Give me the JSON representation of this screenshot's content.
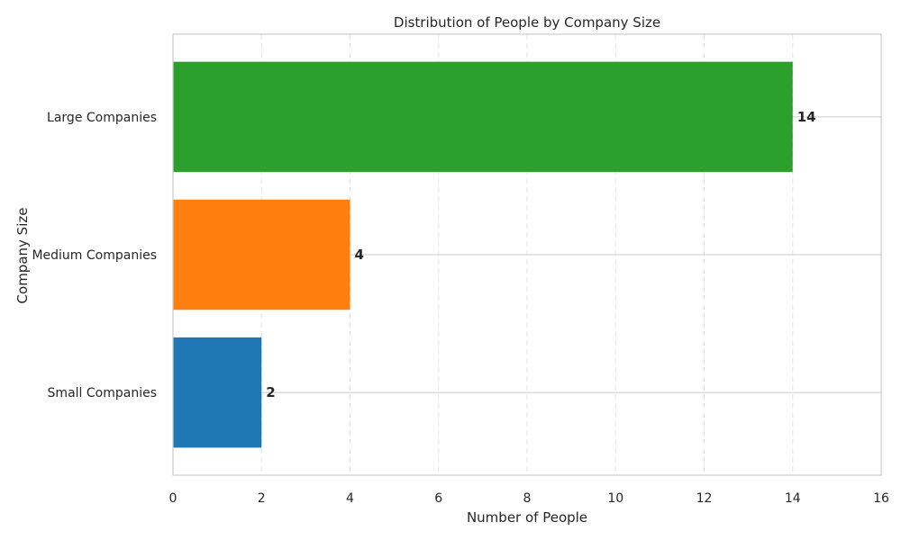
{
  "chart_data": {
    "type": "bar",
    "orientation": "horizontal",
    "title": "Distribution of People by Company Size",
    "xlabel": "Number of People",
    "ylabel": "Company Size",
    "categories": [
      "Small Companies",
      "Medium Companies",
      "Large Companies"
    ],
    "values": [
      2,
      4,
      14
    ],
    "data_labels": [
      "2",
      "4",
      "14"
    ],
    "colors": [
      "#1f77b4",
      "#ff7f0e",
      "#2ca02c"
    ],
    "xlim": [
      0,
      16
    ],
    "xticks": [
      0,
      2,
      4,
      6,
      8,
      10,
      12,
      14,
      16
    ],
    "xtick_labels": [
      "0",
      "2",
      "4",
      "6",
      "8",
      "10",
      "12",
      "14",
      "16"
    ],
    "grid": "vertical dashed, horizontal at category ticks",
    "legend": "none"
  }
}
